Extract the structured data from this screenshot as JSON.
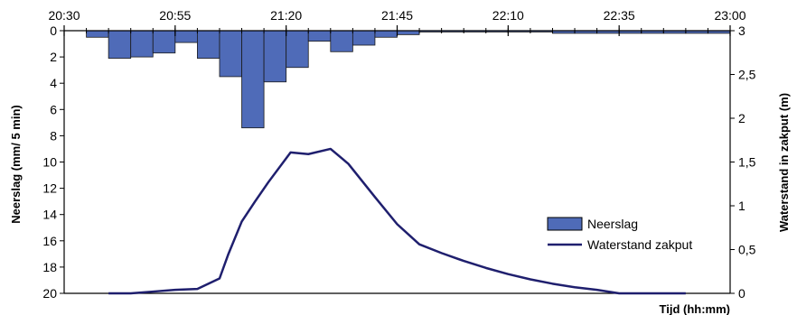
{
  "chart_data": {
    "type": "bar+line",
    "x_axis": {
      "label": "Tijd (hh:mm)",
      "ticks": [
        "20:30",
        "20:55",
        "21:20",
        "21:45",
        "22:10",
        "22:35",
        "23:00"
      ],
      "position": "top"
    },
    "y_left": {
      "label": "Neerslag  (mm/ 5 min)",
      "ticks": [
        "0",
        "2",
        "4",
        "6",
        "8",
        "10",
        "12",
        "14",
        "16",
        "18",
        "20"
      ],
      "range": [
        0,
        20
      ],
      "inverted": true
    },
    "y_right": {
      "label": "Waterstand in zakput (m)",
      "ticks": [
        "0",
        "0,5",
        "1",
        "1,5",
        "2",
        "2,5",
        "3"
      ],
      "range": [
        0,
        3
      ]
    },
    "bars": {
      "name": "Neerslag",
      "color": "#4f6bb8",
      "times": [
        "20:40",
        "20:45",
        "20:50",
        "20:55",
        "21:00",
        "21:05",
        "21:10",
        "21:15",
        "21:20",
        "21:25",
        "21:30",
        "21:35",
        "21:40",
        "21:45",
        "21:50",
        "21:55",
        "22:00",
        "22:05",
        "22:10",
        "22:15",
        "22:20",
        "22:25",
        "22:30",
        "22:35",
        "22:40",
        "22:45",
        "22:50",
        "22:55",
        "23:00"
      ],
      "values": [
        0.5,
        2.1,
        2.0,
        1.7,
        0.9,
        2.1,
        3.5,
        7.4,
        3.9,
        2.8,
        0.8,
        1.6,
        1.1,
        0.5,
        0.3,
        0.1,
        0.1,
        0.1,
        0.1,
        0.1,
        0.1,
        0.2,
        0.2,
        0.2,
        0.2,
        0.2,
        0.2,
        0.2,
        0.2
      ]
    },
    "line": {
      "name": "Waterstand zakput",
      "color": "#1f1f6e",
      "times": [
        "20:40",
        "20:45",
        "20:50",
        "20:55",
        "21:00",
        "21:05",
        "21:07",
        "21:10",
        "21:13",
        "21:16",
        "21:21",
        "21:25",
        "21:30",
        "21:34",
        "21:40",
        "21:45",
        "21:50",
        "21:55",
        "22:00",
        "22:05",
        "22:10",
        "22:15",
        "22:20",
        "22:25",
        "22:30",
        "22:35",
        "22:40",
        "22:45",
        "22:50"
      ],
      "values": [
        0.0,
        0.0,
        0.02,
        0.04,
        0.05,
        0.17,
        0.45,
        0.82,
        1.05,
        1.27,
        1.61,
        1.59,
        1.65,
        1.48,
        1.1,
        0.79,
        0.56,
        0.46,
        0.37,
        0.29,
        0.22,
        0.16,
        0.11,
        0.07,
        0.04,
        0.0,
        0.0,
        0.0,
        0.0
      ]
    },
    "legend": {
      "placement": "bottom-right"
    },
    "grid": false
  }
}
